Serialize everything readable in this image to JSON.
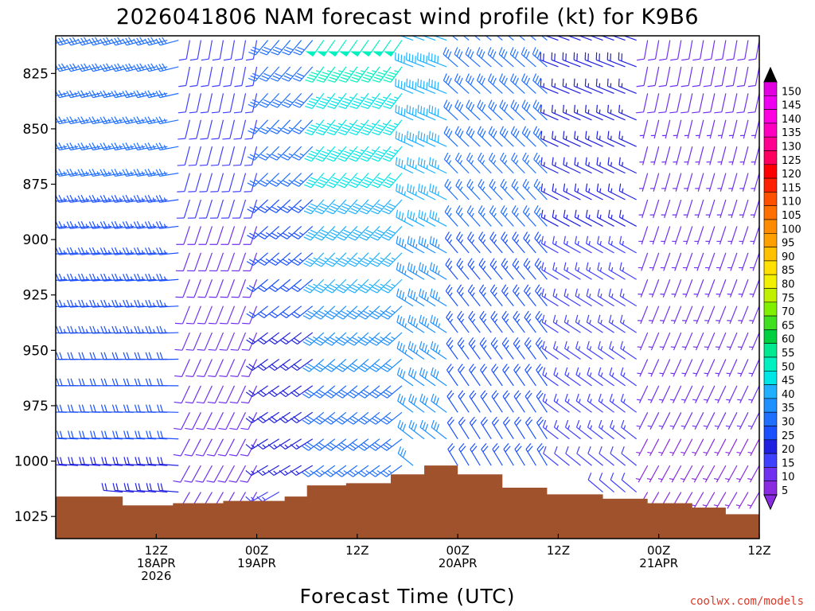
{
  "chart_data": {
    "type": "wind-barb time-height profile",
    "title": "2026041806 NAM forecast wind profile (kt) for K9B6",
    "xlabel": "Forecast Time (UTC)",
    "ylabel": "",
    "credit": "coolwx.com/models",
    "y_scale": "pressure (hPa), inverted",
    "ylim": [
      1035,
      808
    ],
    "y_ticks": [
      825,
      850,
      875,
      900,
      925,
      950,
      975,
      1000,
      1025
    ],
    "x_range_hours": [
      -3,
      60
    ],
    "x_ticks": [
      {
        "hour": 6,
        "lines": [
          "12Z",
          "18APR",
          "2026"
        ]
      },
      {
        "hour": 15,
        "lines": [
          "00Z",
          "19APR"
        ]
      },
      {
        "hour": 24,
        "lines": [
          "12Z"
        ]
      },
      {
        "hour": 33,
        "lines": [
          "00Z",
          "20APR"
        ]
      },
      {
        "hour": 42,
        "lines": [
          "12Z"
        ]
      },
      {
        "hour": 51,
        "lines": [
          "00Z",
          "21APR"
        ]
      },
      {
        "hour": 60,
        "lines": [
          "12Z"
        ]
      }
    ],
    "colorbar": {
      "unit": "kt",
      "levels": [
        5,
        10,
        15,
        20,
        25,
        30,
        35,
        40,
        45,
        50,
        55,
        60,
        65,
        70,
        75,
        80,
        85,
        90,
        95,
        100,
        105,
        110,
        115,
        120,
        125,
        130,
        135,
        140,
        145,
        150
      ],
      "colors": [
        "#8a2be2",
        "#7030f0",
        "#4040ff",
        "#2020e0",
        "#1a50ff",
        "#2070ff",
        "#1e90ff",
        "#20b0ff",
        "#00e5e5",
        "#00f0c0",
        "#00e890",
        "#00d040",
        "#40e020",
        "#80f000",
        "#c0f000",
        "#f0f000",
        "#ffe000",
        "#ffc000",
        "#ffa000",
        "#ff8c00",
        "#ff7000",
        "#ff5000",
        "#ff2000",
        "#ff0000",
        "#ff0060",
        "#ff0090",
        "#ff00c0",
        "#ff00e0",
        "#f000f0",
        "#e000e0"
      ]
    },
    "surface_pressure": [
      {
        "hour": -3.0,
        "p": 1016
      },
      {
        "hour": 3.0,
        "p": 1020
      },
      {
        "hour": 7.5,
        "p": 1019
      },
      {
        "hour": 12.0,
        "p": 1018
      },
      {
        "hour": 17.5,
        "p": 1016
      },
      {
        "hour": 19.5,
        "p": 1011
      },
      {
        "hour": 23.0,
        "p": 1010
      },
      {
        "hour": 27.0,
        "p": 1006
      },
      {
        "hour": 30.0,
        "p": 1002
      },
      {
        "hour": 33.0,
        "p": 1006
      },
      {
        "hour": 37.0,
        "p": 1012
      },
      {
        "hour": 41.0,
        "p": 1015
      },
      {
        "hour": 46.0,
        "p": 1017
      },
      {
        "hour": 50.0,
        "p": 1019
      },
      {
        "hour": 54.0,
        "p": 1021
      },
      {
        "hour": 57.0,
        "p": 1024
      },
      {
        "hour": 60.0,
        "p": 1024
      }
    ],
    "barb_levels_hPa": [
      810,
      822,
      834,
      846,
      858,
      870,
      882,
      894,
      906,
      918,
      930,
      942,
      954,
      966,
      978,
      990,
      1002,
      1014
    ],
    "barb_times_hours": [
      -3,
      -2,
      -1,
      0,
      1,
      2,
      3,
      4,
      5,
      6,
      7,
      8,
      9,
      10,
      11,
      12,
      13,
      14,
      15,
      16,
      17,
      18,
      19,
      20,
      21,
      22,
      23,
      24,
      25,
      26,
      27,
      28,
      29,
      30,
      31,
      32,
      33,
      34,
      35,
      36,
      37,
      38,
      39,
      40,
      41,
      42,
      43,
      44,
      45,
      46,
      47,
      48,
      49,
      50,
      51,
      52,
      53,
      54,
      55,
      56,
      57,
      58,
      59,
      60
    ],
    "wind_regimes": [
      {
        "from_hour": -3,
        "to_hour": 9,
        "dir_deg": 265,
        "speed_kt": [
          28,
          20
        ]
      },
      {
        "from_hour": 9,
        "to_hour": 16,
        "dir_deg": 200,
        "speed_kt": [
          12,
          8
        ]
      },
      {
        "from_hour": 16,
        "to_hour": 21,
        "dir_deg": 230,
        "speed_kt": [
          30,
          15
        ]
      },
      {
        "from_hour": 21,
        "to_hour": 29,
        "dir_deg": 225,
        "speed_kt": [
          48,
          25
        ]
      },
      {
        "from_hour": 29,
        "to_hour": 33,
        "dir_deg": 300,
        "speed_kt": [
          40,
          30
        ]
      },
      {
        "from_hour": 33,
        "to_hour": 42,
        "dir_deg": 320,
        "speed_kt": [
          30,
          20
        ]
      },
      {
        "from_hour": 42,
        "to_hour": 50,
        "dir_deg": 300,
        "speed_kt": [
          18,
          12
        ]
      },
      {
        "from_hour": 50,
        "to_hour": 60,
        "dir_deg": 200,
        "speed_kt": [
          8,
          5
        ]
      }
    ]
  }
}
